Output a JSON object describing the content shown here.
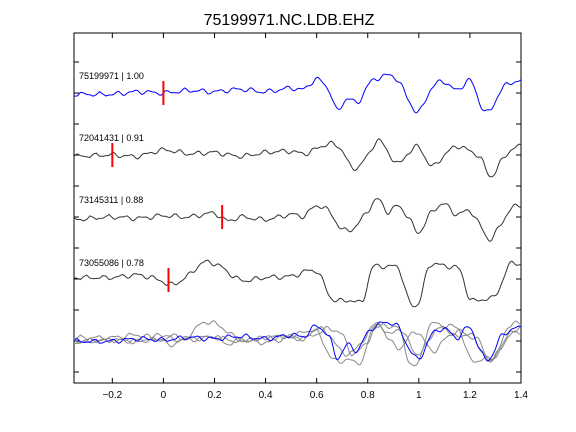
{
  "chart_data": {
    "type": "line",
    "title": "75199971.NC.LDB.EHZ",
    "xlabel": "",
    "ylabel": "",
    "xlim": [
      -0.35,
      1.4
    ],
    "x_ticks": [
      -0.2,
      0,
      0.2,
      0.4,
      0.6,
      0.8,
      1,
      1.2,
      1.4
    ],
    "x_tick_labels": [
      "−0.2",
      "0",
      "0.2",
      "0.4",
      "0.6",
      "0.8",
      "1",
      "1.2",
      "1.4"
    ],
    "grid": false,
    "legend": "none",
    "traces": [
      {
        "label": "75199971 | 1.00",
        "color": "#0000ff",
        "pick_time": 0.0,
        "t": [
          -0.35,
          -0.2,
          -0.1,
          0.0,
          0.1,
          0.2,
          0.3,
          0.4,
          0.5,
          0.55,
          0.6,
          0.65,
          0.68,
          0.72,
          0.76,
          0.8,
          0.84,
          0.88,
          0.92,
          0.96,
          1.0,
          1.05,
          1.1,
          1.15,
          1.2,
          1.25,
          1.28,
          1.32,
          1.36,
          1.4
        ],
        "amp": [
          -0.05,
          -0.05,
          0.05,
          0.0,
          0.1,
          0.05,
          0.15,
          0.05,
          0.2,
          0.15,
          0.55,
          0.1,
          -0.7,
          -0.2,
          -0.4,
          0.3,
          0.6,
          0.7,
          0.5,
          -0.3,
          -0.75,
          0.2,
          0.45,
          0.1,
          0.5,
          -0.6,
          -0.7,
          0.1,
          0.4,
          0.5
        ]
      },
      {
        "label": "72041431 | 0.91",
        "color": "#333333",
        "pick_time": -0.2,
        "t": [
          -0.35,
          -0.2,
          -0.1,
          0.0,
          0.1,
          0.2,
          0.3,
          0.4,
          0.5,
          0.55,
          0.6,
          0.65,
          0.7,
          0.74,
          0.8,
          0.84,
          0.88,
          0.92,
          0.96,
          1.0,
          1.05,
          1.1,
          1.15,
          1.2,
          1.24,
          1.28,
          1.32,
          1.36,
          1.4
        ],
        "amp": [
          -0.05,
          0.0,
          -0.05,
          0.2,
          0.05,
          0.1,
          -0.05,
          0.1,
          0.15,
          0.05,
          0.25,
          0.45,
          0.2,
          -0.55,
          -0.05,
          0.6,
          0.1,
          -0.35,
          0.1,
          0.3,
          -0.45,
          0.0,
          0.35,
          0.15,
          -0.1,
          -0.85,
          -0.3,
          0.2,
          0.35
        ]
      },
      {
        "label": "73145311 | 0.88",
        "color": "#333333",
        "pick_time": 0.23,
        "t": [
          -0.35,
          -0.2,
          -0.1,
          0.0,
          0.1,
          0.2,
          0.25,
          0.3,
          0.4,
          0.5,
          0.55,
          0.6,
          0.65,
          0.7,
          0.75,
          0.8,
          0.84,
          0.88,
          0.92,
          0.96,
          1.0,
          1.05,
          1.1,
          1.15,
          1.2,
          1.25,
          1.28,
          1.32,
          1.36,
          1.4
        ],
        "amp": [
          -0.1,
          0.0,
          -0.05,
          0.05,
          0.0,
          0.15,
          -0.15,
          0.0,
          -0.1,
          0.1,
          0.05,
          0.45,
          0.2,
          -0.5,
          -0.4,
          0.25,
          0.7,
          0.2,
          0.45,
          -0.05,
          -0.6,
          0.2,
          0.5,
          0.1,
          0.25,
          -0.5,
          -0.9,
          -0.3,
          0.3,
          0.5
        ]
      },
      {
        "label": "73055086 | 0.78",
        "color": "#333333",
        "pick_time": 0.02,
        "t": [
          -0.35,
          -0.2,
          -0.1,
          -0.05,
          0.0,
          0.02,
          0.08,
          0.16,
          0.22,
          0.3,
          0.4,
          0.5,
          0.6,
          0.66,
          0.72,
          0.78,
          0.82,
          0.88,
          0.92,
          0.96,
          1.0,
          1.04,
          1.1,
          1.16,
          1.2,
          1.26,
          1.3,
          1.36,
          1.4
        ],
        "amp": [
          0.1,
          0.1,
          0.2,
          0.1,
          -0.05,
          -0.2,
          0.05,
          0.7,
          0.55,
          0.0,
          0.1,
          0.15,
          0.35,
          -0.75,
          -0.8,
          -0.8,
          0.5,
          0.5,
          0.5,
          -0.8,
          -0.9,
          0.55,
          0.55,
          0.4,
          -0.75,
          -0.75,
          -0.6,
          0.65,
          0.6
        ]
      }
    ],
    "overlay": {
      "description_free": true,
      "series_ref": [
        0,
        1,
        2,
        3
      ]
    }
  }
}
